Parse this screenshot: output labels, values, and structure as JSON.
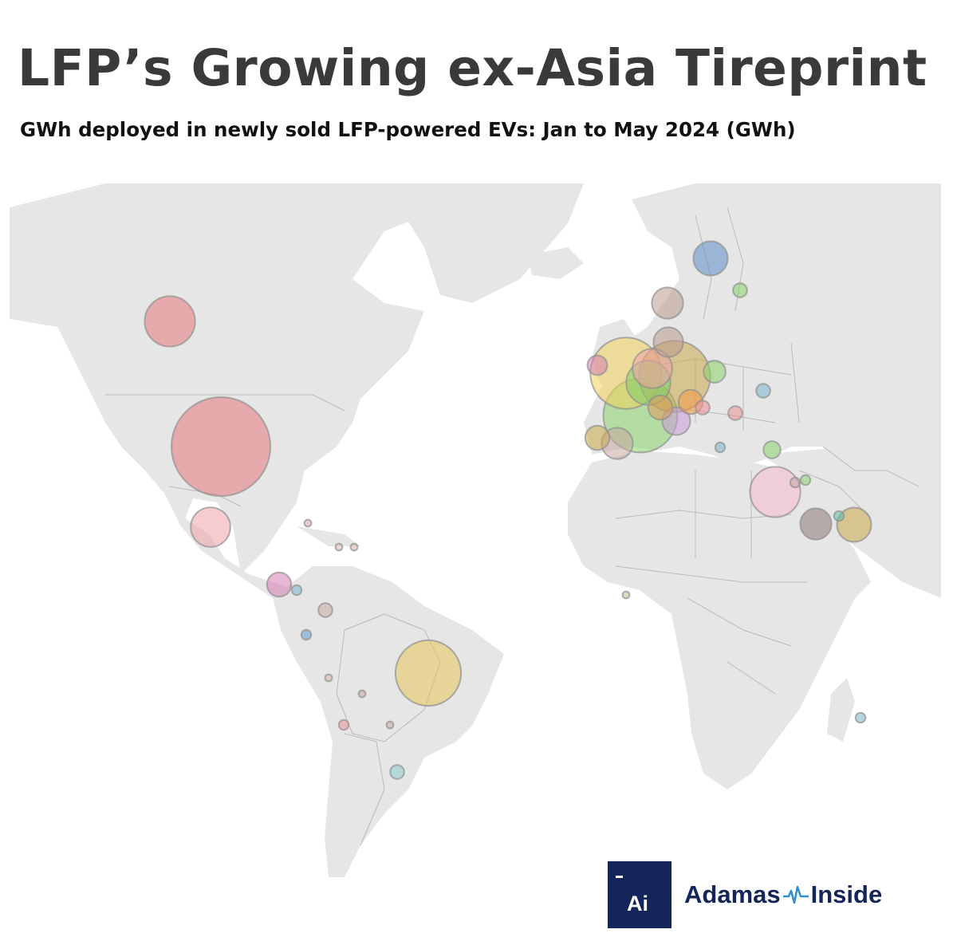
{
  "title": "LFP’s Growing ex-Asia Tireprint",
  "subtitle": "GWh deployed in newly sold LFP-powered EVs:  Jan to May 2024 (GWh)",
  "map": {
    "projection": "web-mercator",
    "land_color": "#e6e6e6",
    "border_color": "#b9b9b9",
    "bubble_opacity": 0.55,
    "bubble_stroke": "#8e8e8e"
  },
  "bubbles": [
    {
      "name": "United States",
      "relative_size": 1.0,
      "color": "#e8797c"
    },
    {
      "name": "Canada",
      "relative_size": 0.26,
      "color": "#e8797c"
    },
    {
      "name": "Mexico",
      "relative_size": 0.16,
      "color": "#f0a3a8"
    },
    {
      "name": "Brazil",
      "relative_size": 0.44,
      "color": "#e8c45a"
    },
    {
      "name": "Costa Rica",
      "relative_size": 0.06,
      "color": "#d47bb3"
    },
    {
      "name": "Panama",
      "relative_size": 0.01,
      "color": "#7ab3cc"
    },
    {
      "name": "Colombia",
      "relative_size": 0.02,
      "color": "#c6a7a0"
    },
    {
      "name": "Ecuador",
      "relative_size": 0.01,
      "color": "#5b9fd0"
    },
    {
      "name": "Peru",
      "relative_size": 0.005,
      "color": "#d9b7a8"
    },
    {
      "name": "Bolivia",
      "relative_size": 0.005,
      "color": "#c6a7a0"
    },
    {
      "name": "Chile",
      "relative_size": 0.01,
      "color": "#ee8f93"
    },
    {
      "name": "Paraguay",
      "relative_size": 0.005,
      "color": "#c6a7a0"
    },
    {
      "name": "Uruguay",
      "relative_size": 0.02,
      "color": "#8fc8cc"
    },
    {
      "name": "Dominican Republic",
      "relative_size": 0.005,
      "color": "#d9b7a8"
    },
    {
      "name": "Puerto Rico",
      "relative_size": 0.005,
      "color": "#d9b7a8"
    },
    {
      "name": "Jamaica",
      "relative_size": 0.005,
      "color": "#c6a7a0"
    },
    {
      "name": "United Kingdom",
      "relative_size": 0.52,
      "color": "#f2d25b"
    },
    {
      "name": "Ireland",
      "relative_size": 0.04,
      "color": "#d47bb3"
    },
    {
      "name": "France",
      "relative_size": 0.56,
      "color": "#89d16a"
    },
    {
      "name": "Germany",
      "relative_size": 0.52,
      "color": "#c9a84a"
    },
    {
      "name": "Belgium",
      "relative_size": 0.16,
      "color": "#f0a3a8"
    },
    {
      "name": "Netherlands",
      "relative_size": 0.2,
      "color": "#7fcf70"
    },
    {
      "name": "Denmark",
      "relative_size": 0.09,
      "color": "#b89a8c"
    },
    {
      "name": "Norway",
      "relative_size": 0.1,
      "color": "#b89a8c"
    },
    {
      "name": "Sweden",
      "relative_size": 0.12,
      "color": "#5b8dc8"
    },
    {
      "name": "Finland",
      "relative_size": 0.02,
      "color": "#89d16a"
    },
    {
      "name": "Poland",
      "relative_size": 0.05,
      "color": "#89d16a"
    },
    {
      "name": "Switzerland",
      "relative_size": 0.06,
      "color": "#e09a5a"
    },
    {
      "name": "Austria",
      "relative_size": 0.06,
      "color": "#f39a45"
    },
    {
      "name": "Italy",
      "relative_size": 0.08,
      "color": "#c99ad8"
    },
    {
      "name": "Spain",
      "relative_size": 0.1,
      "color": "#c6a7a0"
    },
    {
      "name": "Portugal",
      "relative_size": 0.06,
      "color": "#c9a84a"
    },
    {
      "name": "Hungary",
      "relative_size": 0.02,
      "color": "#ee8f93"
    },
    {
      "name": "Romania",
      "relative_size": 0.02,
      "color": "#ee8f93"
    },
    {
      "name": "Ukraine",
      "relative_size": 0.02,
      "color": "#7ab3cc"
    },
    {
      "name": "Greece",
      "relative_size": 0.01,
      "color": "#7ab3cc"
    },
    {
      "name": "Turkey",
      "relative_size": 0.03,
      "color": "#89d16a"
    },
    {
      "name": "Israel",
      "relative_size": 0.26,
      "color": "#f7b8d0"
    },
    {
      "name": "Jordan",
      "relative_size": 0.01,
      "color": "#c6a7a0"
    },
    {
      "name": "Iraq",
      "relative_size": 0.01,
      "color": "#89d16a"
    },
    {
      "name": "Saudi Arabia",
      "relative_size": 0.1,
      "color": "#8f7a78"
    },
    {
      "name": "United Arab Emirates",
      "relative_size": 0.12,
      "color": "#c9a84a"
    },
    {
      "name": "Qatar",
      "relative_size": 0.01,
      "color": "#5fbfa8"
    },
    {
      "name": "Mauritius",
      "relative_size": 0.01,
      "color": "#7ab3cc"
    },
    {
      "name": "Nigeria",
      "relative_size": 0.005,
      "color": "#b3c98a"
    }
  ],
  "logo": {
    "mark": "Ai",
    "brand_left": "Adamas",
    "brand_right": "Inside"
  }
}
